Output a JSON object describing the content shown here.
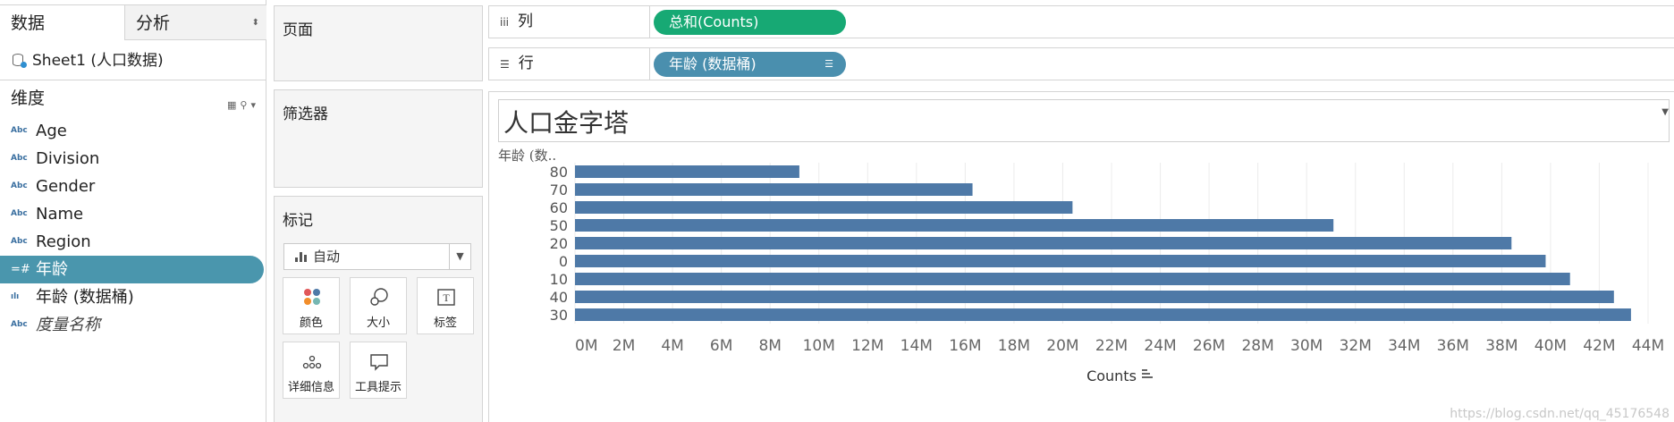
{
  "left_pane": {
    "tabs": {
      "data": "数据",
      "analysis": "分析"
    },
    "data_source": "Sheet1 (人口数据)",
    "dimensions_header": "维度",
    "fields": [
      {
        "type": "Abc",
        "label": "Age"
      },
      {
        "type": "Abc",
        "label": "Division"
      },
      {
        "type": "Abc",
        "label": "Gender"
      },
      {
        "type": "Abc",
        "label": "Name"
      },
      {
        "type": "Abc",
        "label": "Region"
      },
      {
        "type": "=#",
        "label": "年龄"
      },
      {
        "type": "ılı",
        "label": "年龄 (数据桶)"
      },
      {
        "type": "Abc",
        "label": "度量名称"
      }
    ]
  },
  "cards": {
    "pages": "页面",
    "filters": "筛选器",
    "marks": "标记",
    "mark_type": "自动",
    "buttons": {
      "color": "颜色",
      "size": "大小",
      "label": "标签",
      "detail": "详细信息",
      "tooltip": "工具提示"
    }
  },
  "shelves": {
    "columns_label": "列",
    "columns_pill": "总和(Counts)",
    "rows_label": "行",
    "rows_pill": "年龄 (数据桶)"
  },
  "view": {
    "title": "人口金字塔",
    "row_header": "年龄 (数..",
    "watermark": "https://blog.csdn.net/qq_45176548"
  },
  "chart_data": {
    "type": "bar",
    "orientation": "horizontal",
    "categories": [
      "80",
      "70",
      "60",
      "50",
      "20",
      "0",
      "10",
      "40",
      "30"
    ],
    "values": [
      9200000,
      16300000,
      20400000,
      31100000,
      38400000,
      39800000,
      40800000,
      42600000,
      43300000
    ],
    "xlabel": "Counts",
    "x_ticks": [
      "0M",
      "2M",
      "4M",
      "6M",
      "8M",
      "10M",
      "12M",
      "14M",
      "16M",
      "18M",
      "20M",
      "22M",
      "24M",
      "26M",
      "28M",
      "30M",
      "32M",
      "34M",
      "36M",
      "38M",
      "40M",
      "42M",
      "44M"
    ],
    "xlim": [
      0,
      44000000
    ],
    "grid": true,
    "bar_color": "#4e79a7"
  },
  "colors": {
    "selected_field": "#4a96ad",
    "pill_measure": "#17a974",
    "pill_dimension": "#4a8fae"
  }
}
